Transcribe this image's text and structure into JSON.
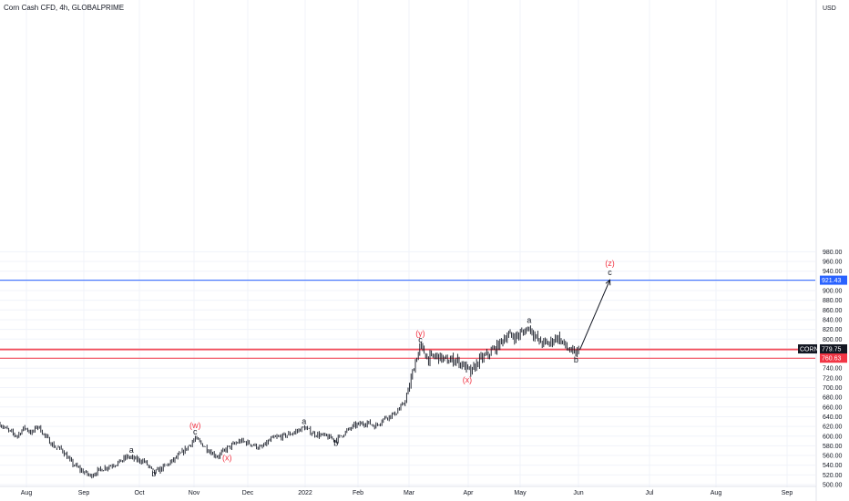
{
  "header": {
    "title": "Corn Cash CFD, 4h, GLOBALPRIME"
  },
  "chart_data": {
    "type": "candlestick",
    "title": "Corn Cash CFD, 4h, GLOBALPRIME",
    "currency": "USD",
    "ylim": [
      500,
      1000
    ],
    "yticks": [
      "980.00",
      "960.00",
      "940.00",
      "920.00",
      "900.00",
      "880.00",
      "860.00",
      "840.00",
      "820.00",
      "800.00",
      "780.00",
      "760.00",
      "740.00",
      "720.00",
      "700.00",
      "680.00",
      "660.00",
      "640.00",
      "620.00",
      "600.00",
      "580.00",
      "560.00",
      "540.00",
      "520.00",
      "500.00"
    ],
    "xticks": [
      "Aug",
      "Sep",
      "Oct",
      "Nov",
      "Dec",
      "2022",
      "Feb",
      "Mar",
      "Apr",
      "May",
      "Jun",
      "Jul",
      "Aug",
      "Sep"
    ],
    "price_path": [
      {
        "t": "2021-07-26",
        "v": 625
      },
      {
        "t": "2021-07-30",
        "v": 612
      },
      {
        "t": "2021-08-04",
        "v": 600
      },
      {
        "t": "2021-08-08",
        "v": 618
      },
      {
        "t": "2021-08-12",
        "v": 606
      },
      {
        "t": "2021-08-15",
        "v": 622
      },
      {
        "t": "2021-08-19",
        "v": 600
      },
      {
        "t": "2021-08-24",
        "v": 578
      },
      {
        "t": "2021-08-28",
        "v": 572
      },
      {
        "t": "2021-09-02",
        "v": 545
      },
      {
        "t": "2021-09-07",
        "v": 530
      },
      {
        "t": "2021-09-12",
        "v": 518
      },
      {
        "t": "2021-09-17",
        "v": 530
      },
      {
        "t": "2021-09-22",
        "v": 538
      },
      {
        "t": "2021-09-27",
        "v": 545
      },
      {
        "t": "2021-10-02",
        "v": 558
      },
      {
        "t": "2021-10-06",
        "v": 552
      },
      {
        "t": "2021-10-11",
        "v": 548
      },
      {
        "t": "2021-10-16",
        "v": 524
      },
      {
        "t": "2021-10-22",
        "v": 538
      },
      {
        "t": "2021-10-27",
        "v": 552
      },
      {
        "t": "2021-11-02",
        "v": 573
      },
      {
        "t": "2021-11-07",
        "v": 595
      },
      {
        "t": "2021-11-11",
        "v": 582
      },
      {
        "t": "2021-11-16",
        "v": 565
      },
      {
        "t": "2021-11-19",
        "v": 558
      },
      {
        "t": "2021-11-24",
        "v": 575
      },
      {
        "t": "2021-12-01",
        "v": 590
      },
      {
        "t": "2021-12-06",
        "v": 585
      },
      {
        "t": "2021-12-12",
        "v": 575
      },
      {
        "t": "2021-12-18",
        "v": 595
      },
      {
        "t": "2021-12-24",
        "v": 600
      },
      {
        "t": "2021-12-30",
        "v": 608
      },
      {
        "t": "2022-01-04",
        "v": 618
      },
      {
        "t": "2022-01-09",
        "v": 605
      },
      {
        "t": "2022-01-15",
        "v": 600
      },
      {
        "t": "2022-01-21",
        "v": 592
      },
      {
        "t": "2022-01-26",
        "v": 608
      },
      {
        "t": "2022-01-31",
        "v": 622
      },
      {
        "t": "2022-02-07",
        "v": 628
      },
      {
        "t": "2022-02-11",
        "v": 620
      },
      {
        "t": "2022-02-16",
        "v": 638
      },
      {
        "t": "2022-02-21",
        "v": 645
      },
      {
        "t": "2022-02-26",
        "v": 665
      },
      {
        "t": "2022-03-01",
        "v": 700
      },
      {
        "t": "2022-03-04",
        "v": 750
      },
      {
        "t": "2022-03-07",
        "v": 785
      },
      {
        "t": "2022-03-11",
        "v": 760
      },
      {
        "t": "2022-03-16",
        "v": 765
      },
      {
        "t": "2022-03-21",
        "v": 755
      },
      {
        "t": "2022-03-26",
        "v": 758
      },
      {
        "t": "2022-03-31",
        "v": 742
      },
      {
        "t": "2022-04-03",
        "v": 730
      },
      {
        "t": "2022-04-07",
        "v": 755
      },
      {
        "t": "2022-04-12",
        "v": 768
      },
      {
        "t": "2022-04-17",
        "v": 785
      },
      {
        "t": "2022-04-22",
        "v": 808
      },
      {
        "t": "2022-04-27",
        "v": 805
      },
      {
        "t": "2022-05-01",
        "v": 815
      },
      {
        "t": "2022-05-04",
        "v": 825
      },
      {
        "t": "2022-05-09",
        "v": 795
      },
      {
        "t": "2022-05-14",
        "v": 790
      },
      {
        "t": "2022-05-19",
        "v": 805
      },
      {
        "t": "2022-05-24",
        "v": 782
      },
      {
        "t": "2022-05-28",
        "v": 768
      },
      {
        "t": "2022-05-31",
        "v": 778
      }
    ],
    "projection": {
      "from": {
        "t": "2022-05-31",
        "v": 778
      },
      "to": {
        "t": "2022-06-16",
        "v": 922
      }
    },
    "horizontal_lines": [
      {
        "v": 921.43,
        "color": "#2962ff",
        "label": "921.43"
      },
      {
        "v": 777.95,
        "color": "#f23645",
        "label": "777.95"
      },
      {
        "v": 760.63,
        "color": "#f23645",
        "label": "760.63"
      }
    ],
    "last_price": {
      "symbol": "CORN",
      "v": 779.75,
      "label": "779.75"
    },
    "wave_labels": [
      {
        "text": "b",
        "t": "2021-10-16",
        "v": 517,
        "color": "#131722"
      },
      {
        "text": "a",
        "t": "2021-10-04",
        "v": 566,
        "color": "#131722"
      },
      {
        "text": "c",
        "t": "2021-11-07",
        "v": 603,
        "color": "#131722"
      },
      {
        "text": "(w)",
        "t": "2021-11-07",
        "v": 616,
        "color": "#f23645"
      },
      {
        "text": "(x)",
        "t": "2021-11-24",
        "v": 550,
        "color": "#f23645"
      },
      {
        "text": "a",
        "t": "2022-01-04",
        "v": 625,
        "color": "#131722"
      },
      {
        "text": "b",
        "t": "2022-01-21",
        "v": 580,
        "color": "#131722"
      },
      {
        "text": "c",
        "t": "2022-03-07",
        "v": 793,
        "color": "#131722"
      },
      {
        "text": "(y)",
        "t": "2022-03-07",
        "v": 806,
        "color": "#f23645"
      },
      {
        "text": "(x)",
        "t": "2022-04-01",
        "v": 710,
        "color": "#f23645"
      },
      {
        "text": "a",
        "t": "2022-05-04",
        "v": 833,
        "color": "#131722"
      },
      {
        "text": "b",
        "t": "2022-05-29",
        "v": 752,
        "color": "#131722"
      },
      {
        "text": "c",
        "t": "2022-06-16",
        "v": 932,
        "color": "#131722"
      },
      {
        "text": "(z)",
        "t": "2022-06-16",
        "v": 951,
        "color": "#f23645"
      }
    ],
    "colors": {
      "grid": "#f0f3fa",
      "candle": "#131722",
      "blue_line": "#2962ff",
      "red_line": "#f23645",
      "wave_red": "#f23645",
      "last_bg": "#131722",
      "axis_line": "#e0e3eb"
    }
  }
}
